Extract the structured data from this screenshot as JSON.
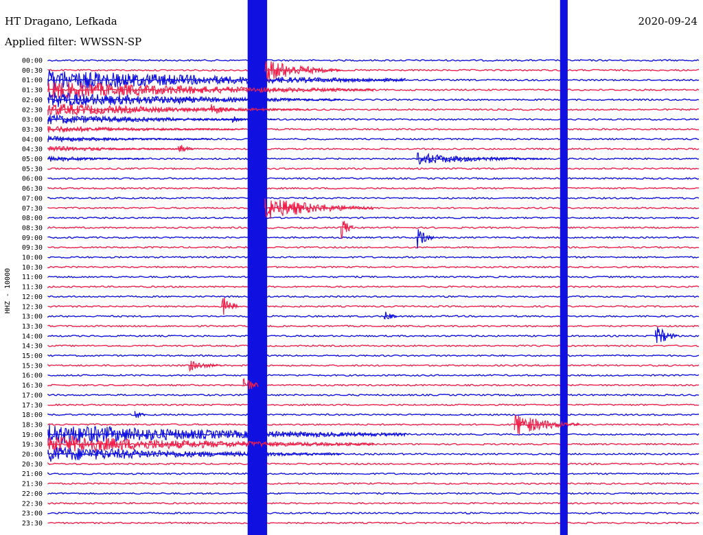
{
  "header": {
    "station": "HT Dragano, Lefkada",
    "filter": "Applied filter: WWSSN-SP",
    "date": "2020-09-24"
  },
  "colors": {
    "trace_a": "#1010e0",
    "trace_b": "#f0204a",
    "background": "#ffffff"
  },
  "chart_data": {
    "type": "line",
    "title": "HT Dragano, Lefkada",
    "subtitle": "Applied filter: WWSSN-SP",
    "date": "2020-09-24",
    "ylabel": "HHZ - 10000",
    "xlabel": "",
    "x_unit": "minutes into line",
    "x_range": [
      0,
      30
    ],
    "grid": false,
    "legend": "none",
    "series": [
      {
        "values": [
          "00:00",
          "00:30",
          "01:00",
          "01:30",
          "02:00",
          "02:30",
          "03:00",
          "03:30",
          "04:00",
          "04:30",
          "05:00",
          "05:30",
          "06:00",
          "06:30",
          "07:00",
          "07:30",
          "08:00",
          "08:30",
          "09:00",
          "09:30",
          "10:00",
          "10:30",
          "11:00",
          "11:30",
          "12:00",
          "12:30",
          "13:00",
          "13:30",
          "14:00",
          "14:30",
          "15:00",
          "15:30",
          "16:00",
          "16:30",
          "17:00",
          "17:30",
          "18:00",
          "18:30",
          "19:00",
          "19:30",
          "20:00",
          "20:30",
          "21:00",
          "21:30",
          "22:00",
          "22:30",
          "23:00",
          "23:30"
        ]
      }
    ],
    "events": [
      {
        "start": "00:00",
        "minute": 9.2,
        "duration_min": 0.9,
        "amplitude": "saturated",
        "lines": 48
      },
      {
        "start": "00:00",
        "minute": 23.6,
        "duration_min": 0.35,
        "amplitude": "saturated",
        "lines": 48
      },
      {
        "start": "00:30",
        "minute": 10.0,
        "duration_min": 3.5,
        "amplitude": "large",
        "coda_lines": 10
      },
      {
        "start": "02:00",
        "minute": 6.0,
        "duration_min": 0.6,
        "amplitude": "medium"
      },
      {
        "start": "02:30",
        "minute": 7.5,
        "duration_min": 1.2,
        "amplitude": "medium"
      },
      {
        "start": "03:00",
        "minute": 8.5,
        "duration_min": 0.5,
        "amplitude": "medium"
      },
      {
        "start": "04:30",
        "minute": 6.0,
        "duration_min": 0.7,
        "amplitude": "medium"
      },
      {
        "start": "05:00",
        "minute": 17.0,
        "duration_min": 6.0,
        "amplitude": "medium"
      },
      {
        "start": "07:30",
        "minute": 10.0,
        "duration_min": 5.0,
        "amplitude": "large"
      },
      {
        "start": "08:30",
        "minute": 13.5,
        "duration_min": 0.6,
        "amplitude": "large"
      },
      {
        "start": "09:00",
        "minute": 17.0,
        "duration_min": 0.8,
        "amplitude": "large"
      },
      {
        "start": "11:00",
        "minute": 9.5,
        "duration_min": 0.6,
        "amplitude": "medium"
      },
      {
        "start": "12:30",
        "minute": 8.0,
        "duration_min": 0.8,
        "amplitude": "large"
      },
      {
        "start": "13:00",
        "minute": 15.5,
        "duration_min": 0.6,
        "amplitude": "medium"
      },
      {
        "start": "14:00",
        "minute": 28.0,
        "duration_min": 1.0,
        "amplitude": "large"
      },
      {
        "start": "15:30",
        "minute": 6.5,
        "duration_min": 1.5,
        "amplitude": "medium"
      },
      {
        "start": "16:30",
        "minute": 9.0,
        "duration_min": 0.7,
        "amplitude": "large"
      },
      {
        "start": "18:00",
        "minute": 4.0,
        "duration_min": 0.5,
        "amplitude": "medium"
      },
      {
        "start": "18:30",
        "minute": 21.5,
        "duration_min": 3.0,
        "amplitude": "large",
        "coda_lines": 4
      }
    ]
  }
}
